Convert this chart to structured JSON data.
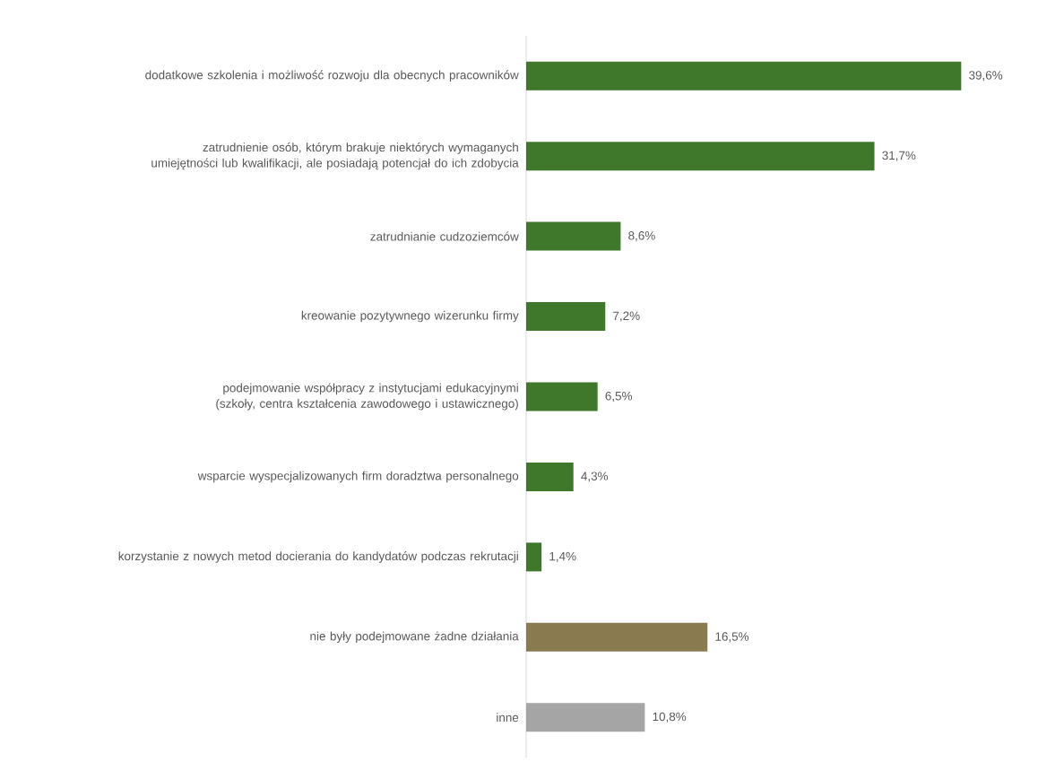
{
  "chart_data": {
    "type": "bar",
    "orientation": "horizontal",
    "categories": [
      "dodatkowe szkolenia i możliwość rozwoju dla obecnych pracowników",
      "zatrudnienie osób, którym brakuje niektórych wymaganych umiejętności lub kwalifikacji, ale posiadają potencjał do ich zdobycia",
      "zatrudnianie cudzoziemców",
      "kreowanie pozytywnego wizerunku firmy",
      "podejmowanie współpracy z instytucjami edukacyjnymi (szkoły, centra kształcenia zawodowego i ustawicznego)",
      "wsparcie wyspecjalizowanych firm doradztwa personalnego",
      "korzystanie z nowych metod docierania do kandydatów podczas rekrutacji",
      "nie były podejmowane żadne działania",
      "inne"
    ],
    "values": [
      39.6,
      31.7,
      8.6,
      7.2,
      6.5,
      4.3,
      1.4,
      16.5,
      10.8
    ],
    "value_labels": [
      "39,6%",
      "31,7%",
      "8,6%",
      "7,2%",
      "6,5%",
      "4,3%",
      "1,4%",
      "16,5%",
      "10,8%"
    ],
    "colors": [
      "#3f772b",
      "#3f772b",
      "#3f772b",
      "#3f772b",
      "#3f772b",
      "#3f772b",
      "#3f772b",
      "#8a7a50",
      "#a5a5a5"
    ]
  }
}
